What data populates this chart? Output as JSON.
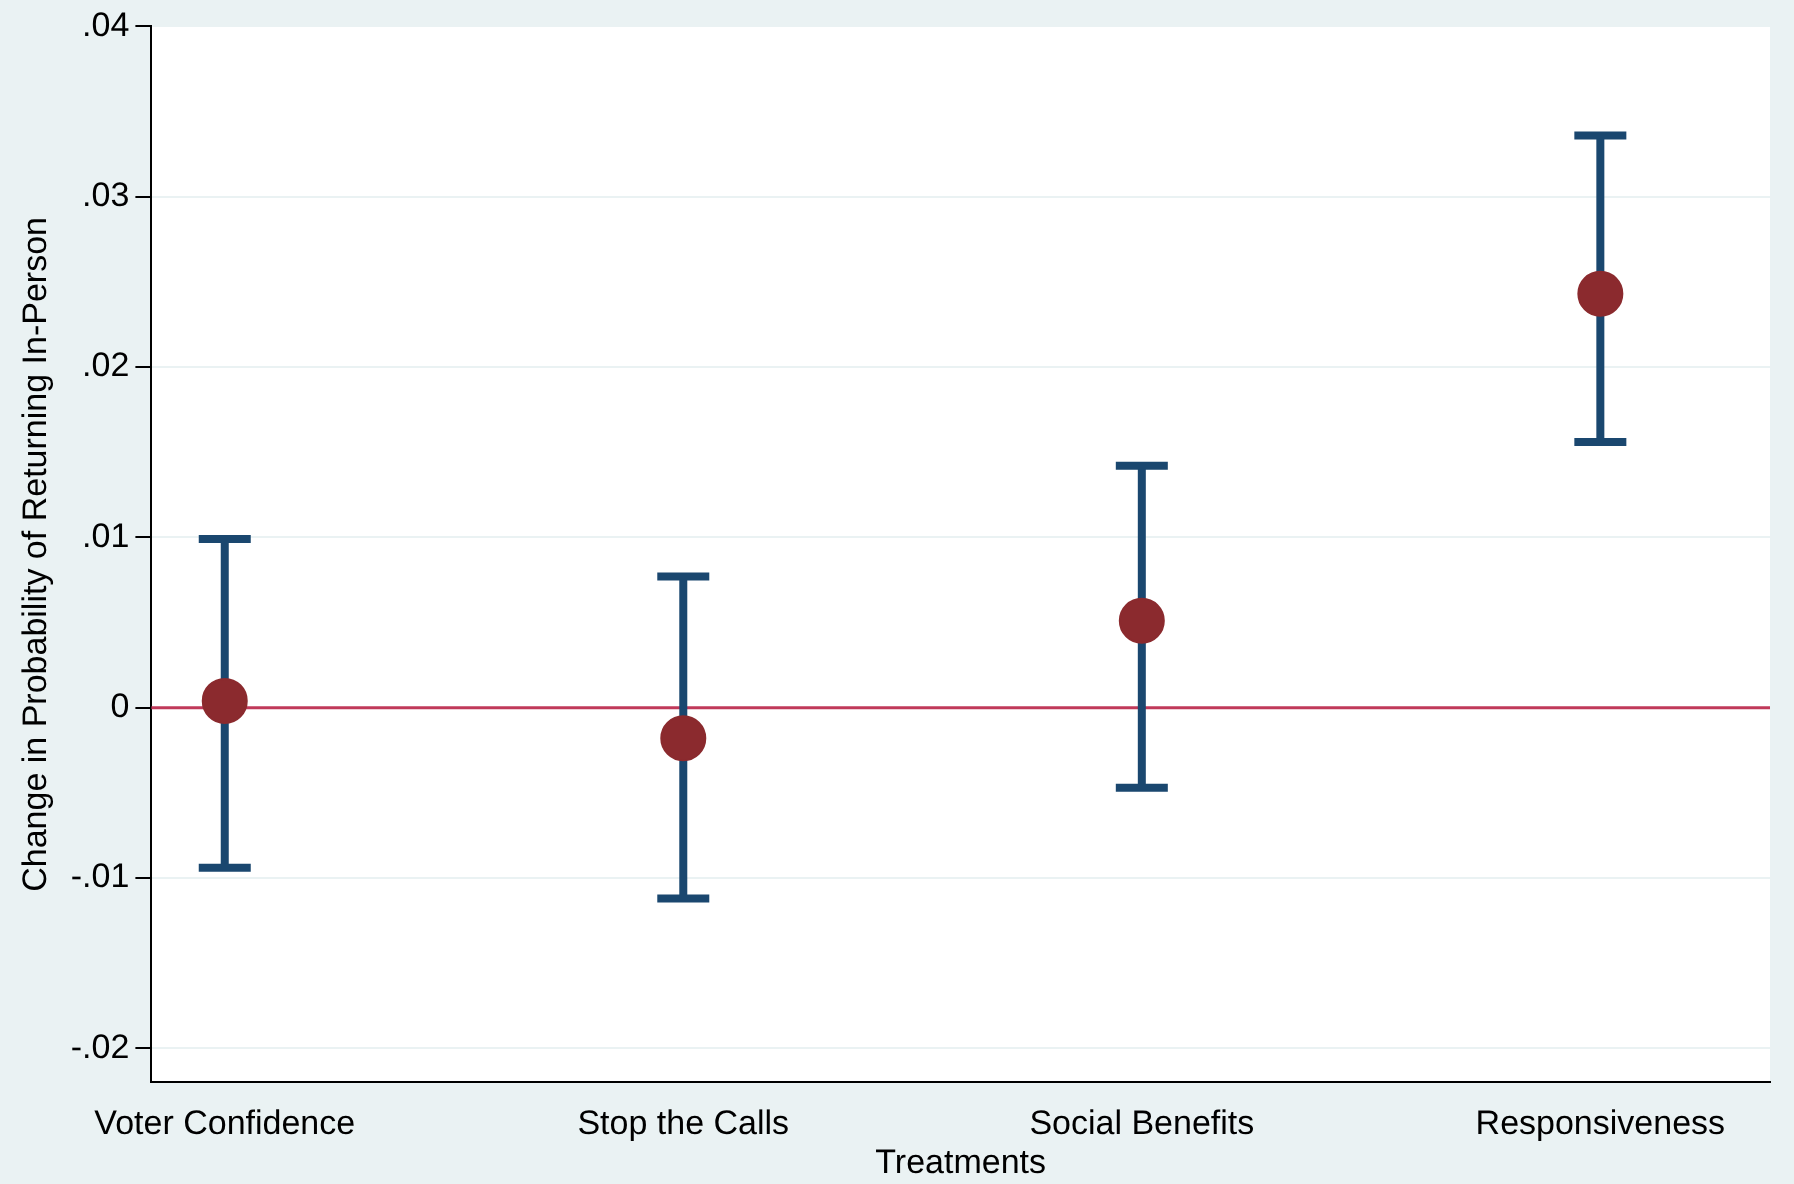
{
  "chart_data": {
    "type": "scatter",
    "xlabel": "Treatments",
    "ylabel": "Change in Probability of Returning In-Person",
    "categories": [
      "Voter Confidence",
      "Stop the Calls",
      "Social Benefits",
      "Responsiveness"
    ],
    "series": [
      {
        "color": "#8b2a2e",
        "values": [
          0.0004,
          -0.0018,
          0.0051,
          0.0243
        ],
        "errors": [
          [
            -0.0094,
            0.0099
          ],
          [
            -0.0112,
            0.0077
          ],
          [
            -0.0047,
            0.0142
          ],
          [
            0.0156,
            0.0336
          ]
        ]
      }
    ],
    "ylim": [
      -0.022,
      0.04
    ],
    "yticks": [
      {
        "value": -0.02,
        "label": "-.02"
      },
      {
        "value": -0.01,
        "label": "-.01"
      },
      0,
      {
        "value": 0.01,
        "label": ".01"
      },
      {
        "value": 0.02,
        "label": ".02"
      },
      {
        "value": 0.03,
        "label": ".03"
      },
      {
        "value": 0.04,
        "label": ".04"
      }
    ],
    "ref_lines": [
      {
        "axis": "y",
        "value": 0,
        "color": "#c0395a"
      }
    ],
    "grid": "y",
    "legend": false,
    "marker": "circle"
  }
}
